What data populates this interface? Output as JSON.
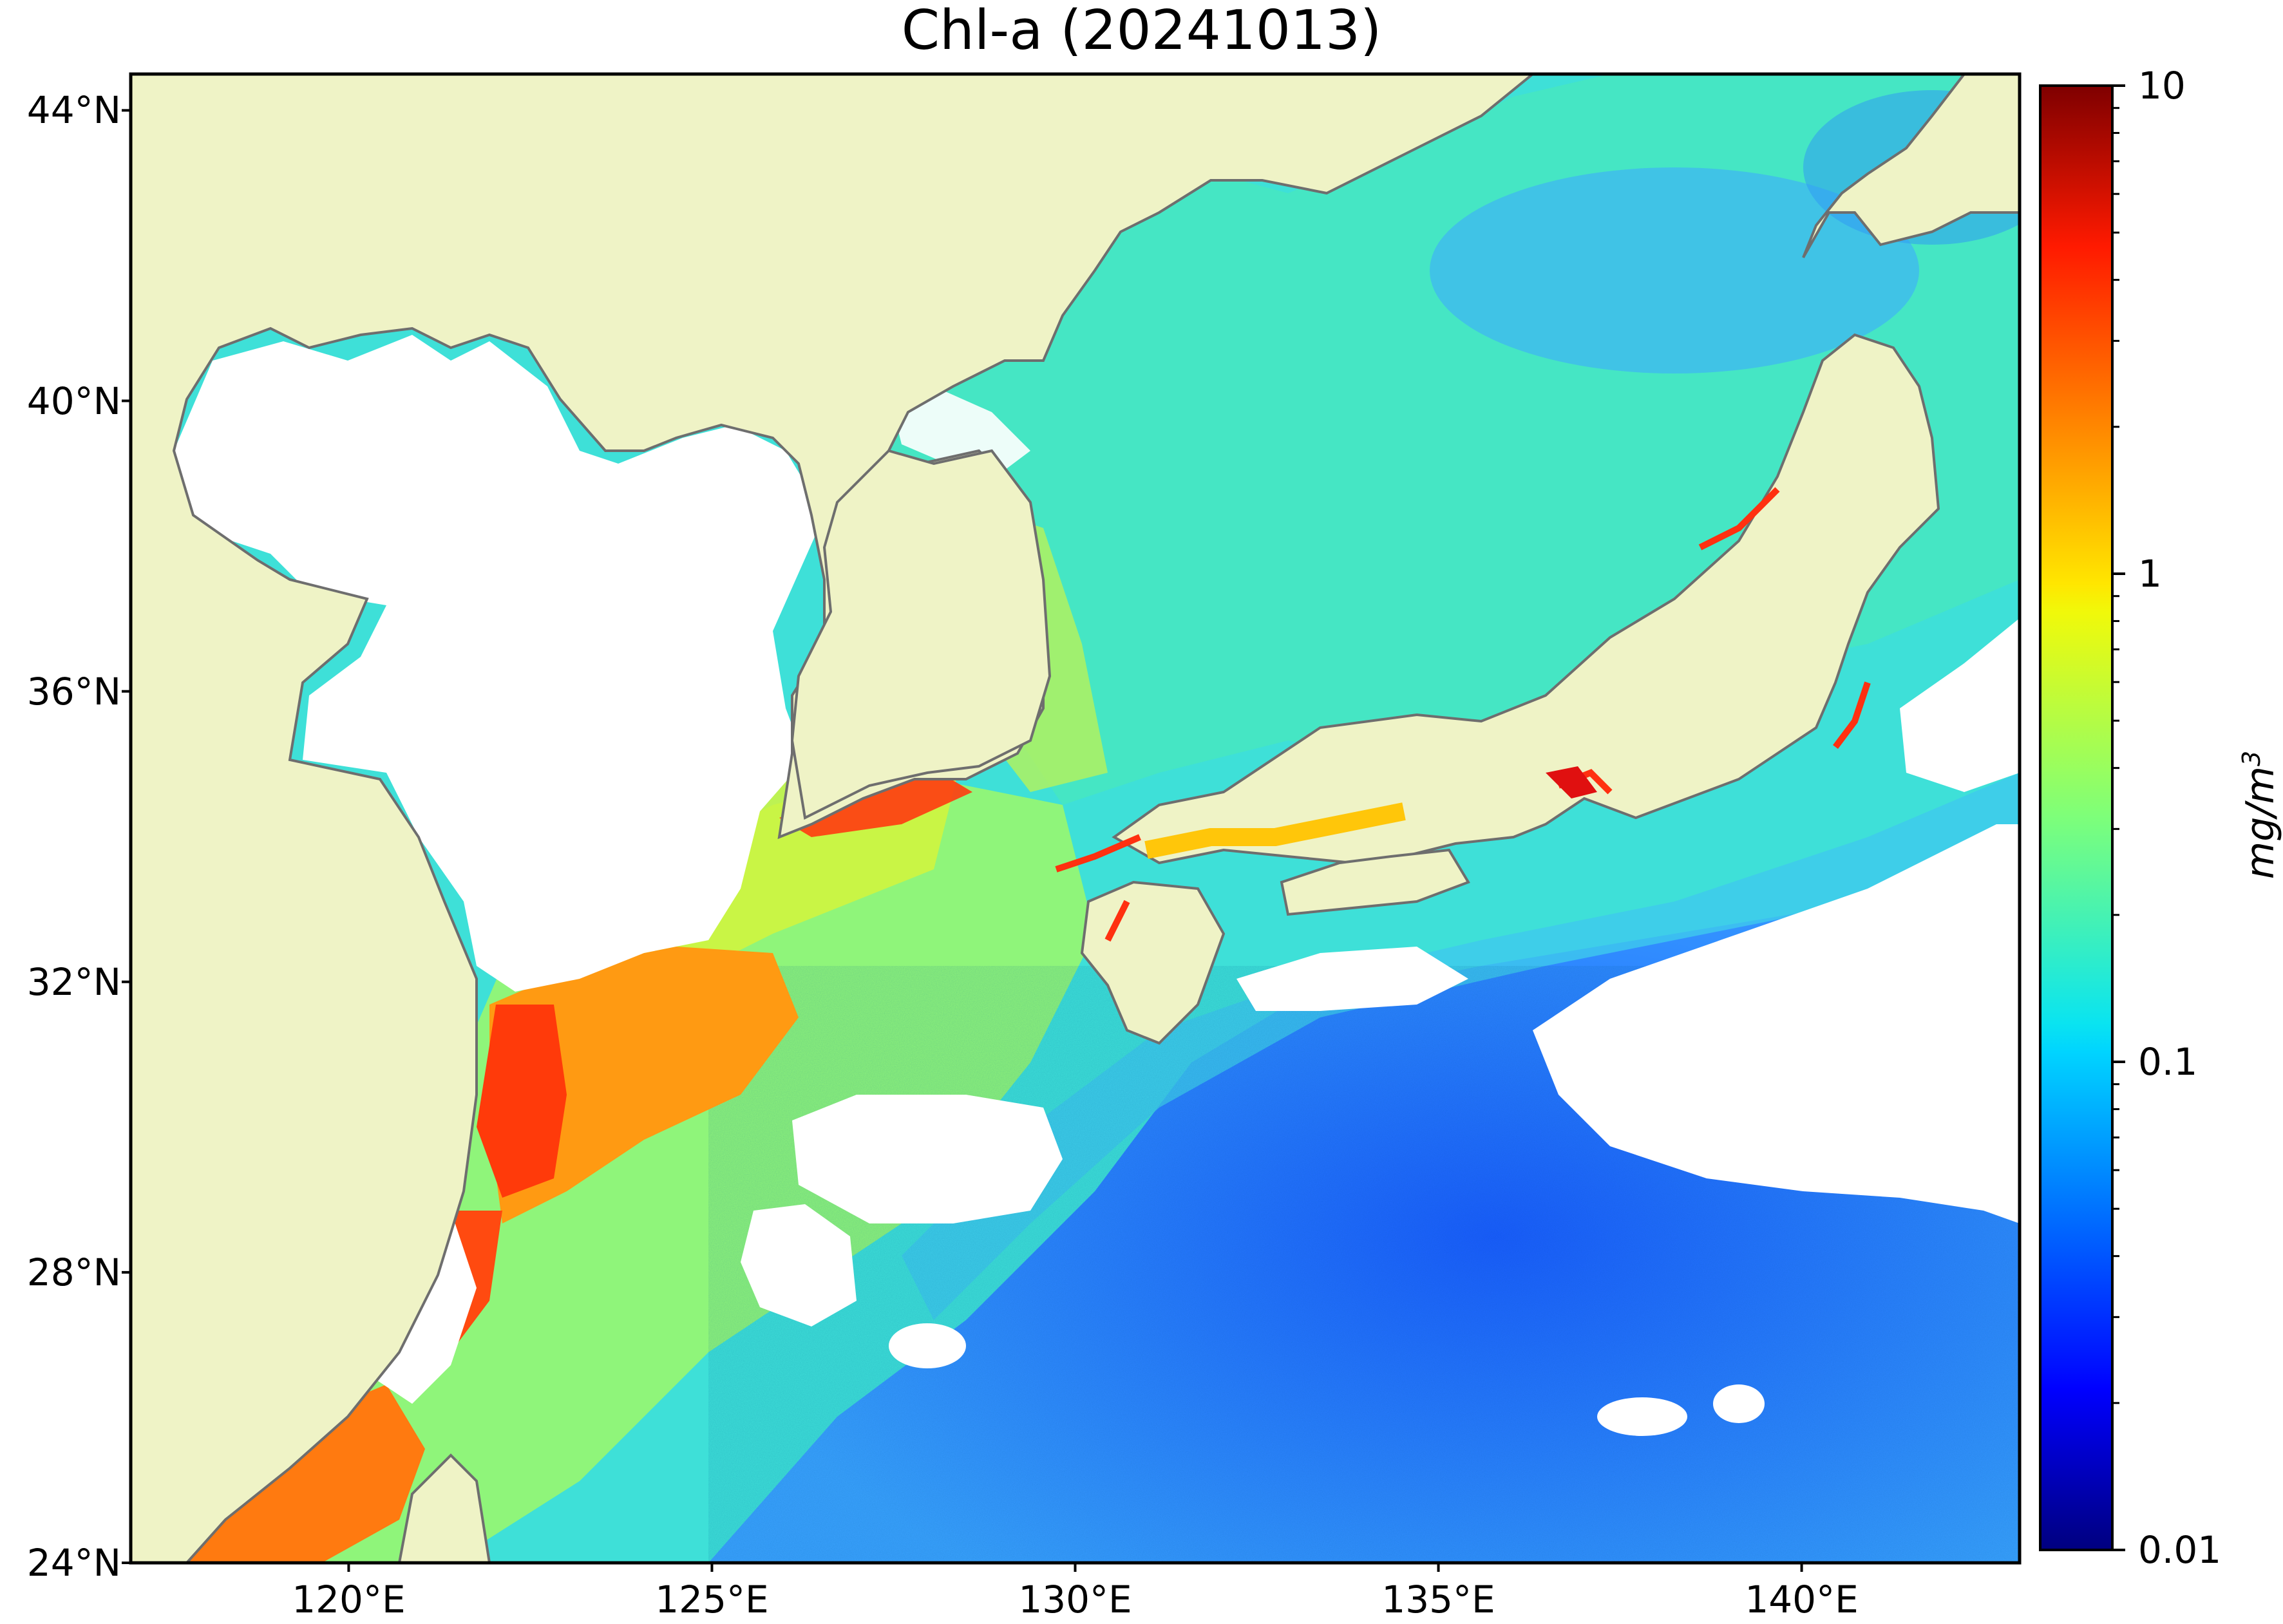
{
  "title": "Chl-a (20241013)",
  "map": {
    "lat_ticks": [
      "44°N",
      "40°N",
      "36°N",
      "32°N",
      "28°N",
      "24°N"
    ],
    "lon_ticks": [
      "120°E",
      "125°E",
      "130°E",
      "135°E",
      "140°E"
    ],
    "extent": {
      "lon_min": 117,
      "lon_max": 143,
      "lat_min": 24,
      "lat_max": 44.5
    },
    "land_color": "#eff3c6",
    "coastline_color": "#6e6e6e",
    "no_data_color": "#ffffff"
  },
  "colorbar": {
    "scale": "log",
    "min": 0.01,
    "max": 10,
    "tick_labels": [
      "10",
      "1",
      "0.1",
      "0.01"
    ],
    "unit": "mg/m3",
    "colormap": "jet"
  }
}
